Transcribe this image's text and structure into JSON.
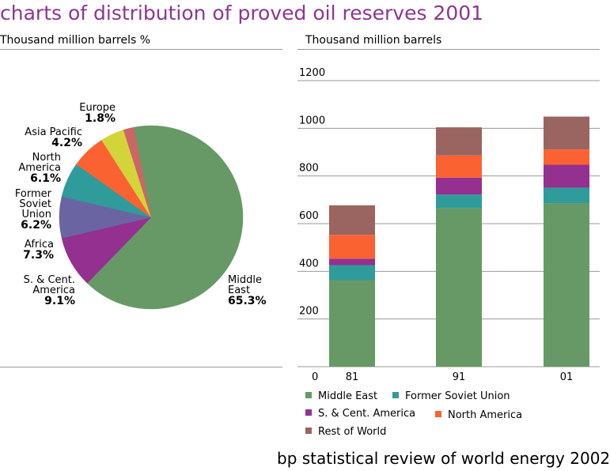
{
  "header": {
    "title": "charts of distribution of proved oil reserves 2001",
    "left_subtitle": "Thousand million barrels %",
    "right_subtitle": "Thousand million barrels"
  },
  "footer": {
    "text": "bp statistical review of world energy 2002"
  },
  "chart_data": [
    {
      "type": "pie",
      "title": "",
      "slices": [
        {
          "name": "Middle East",
          "label_lines": [
            "Middle",
            "East"
          ],
          "value": 65.3,
          "value_label": "65.3%",
          "color": "#669966"
        },
        {
          "name": "S. & Cent. America",
          "label_lines": [
            "S. & Cent.",
            "America"
          ],
          "value": 9.1,
          "value_label": "9.1%",
          "color": "#94308f"
        },
        {
          "name": "Africa",
          "label_lines": [
            "Africa"
          ],
          "value": 7.3,
          "value_label": "7.3%",
          "color": "#6a64a2"
        },
        {
          "name": "Former Soviet Union",
          "label_lines": [
            "Former",
            "Soviet",
            "Union"
          ],
          "value": 6.2,
          "value_label": "6.2%",
          "color": "#2f9b9b"
        },
        {
          "name": "North America",
          "label_lines": [
            "North",
            "America"
          ],
          "value": 6.1,
          "value_label": "6.1%",
          "color": "#fb6232"
        },
        {
          "name": "Asia Pacific",
          "label_lines": [
            "Asia Pacific"
          ],
          "value": 4.2,
          "value_label": "4.2%",
          "color": "#d3d43a"
        },
        {
          "name": "Europe",
          "label_lines": [
            "Europe"
          ],
          "value": 1.8,
          "value_label": "1.8%",
          "color": "#cc6666"
        }
      ]
    },
    {
      "type": "bar",
      "stacked": true,
      "title": "",
      "categories": [
        "81",
        "91",
        "01"
      ],
      "series": [
        {
          "name": "Middle East",
          "color": "#669966",
          "values": [
            363,
            665,
            686
          ]
        },
        {
          "name": "Former Soviet Union",
          "color": "#2f9b9b",
          "values": [
            63,
            57,
            65
          ]
        },
        {
          "name": "S. & Cent. America",
          "color": "#94308f",
          "values": [
            27,
            71,
            96
          ]
        },
        {
          "name": "North America",
          "color": "#fb6232",
          "values": [
            100,
            93,
            64
          ]
        },
        {
          "name": "Rest of World",
          "color": "#9a6460",
          "values": [
            124,
            118,
            138
          ]
        }
      ],
      "ylim": [
        0,
        1200
      ],
      "yticks": [
        "0",
        "200",
        "400",
        "600",
        "800",
        "1000",
        "1200"
      ],
      "grid": true,
      "legend_position": "bottom"
    }
  ]
}
